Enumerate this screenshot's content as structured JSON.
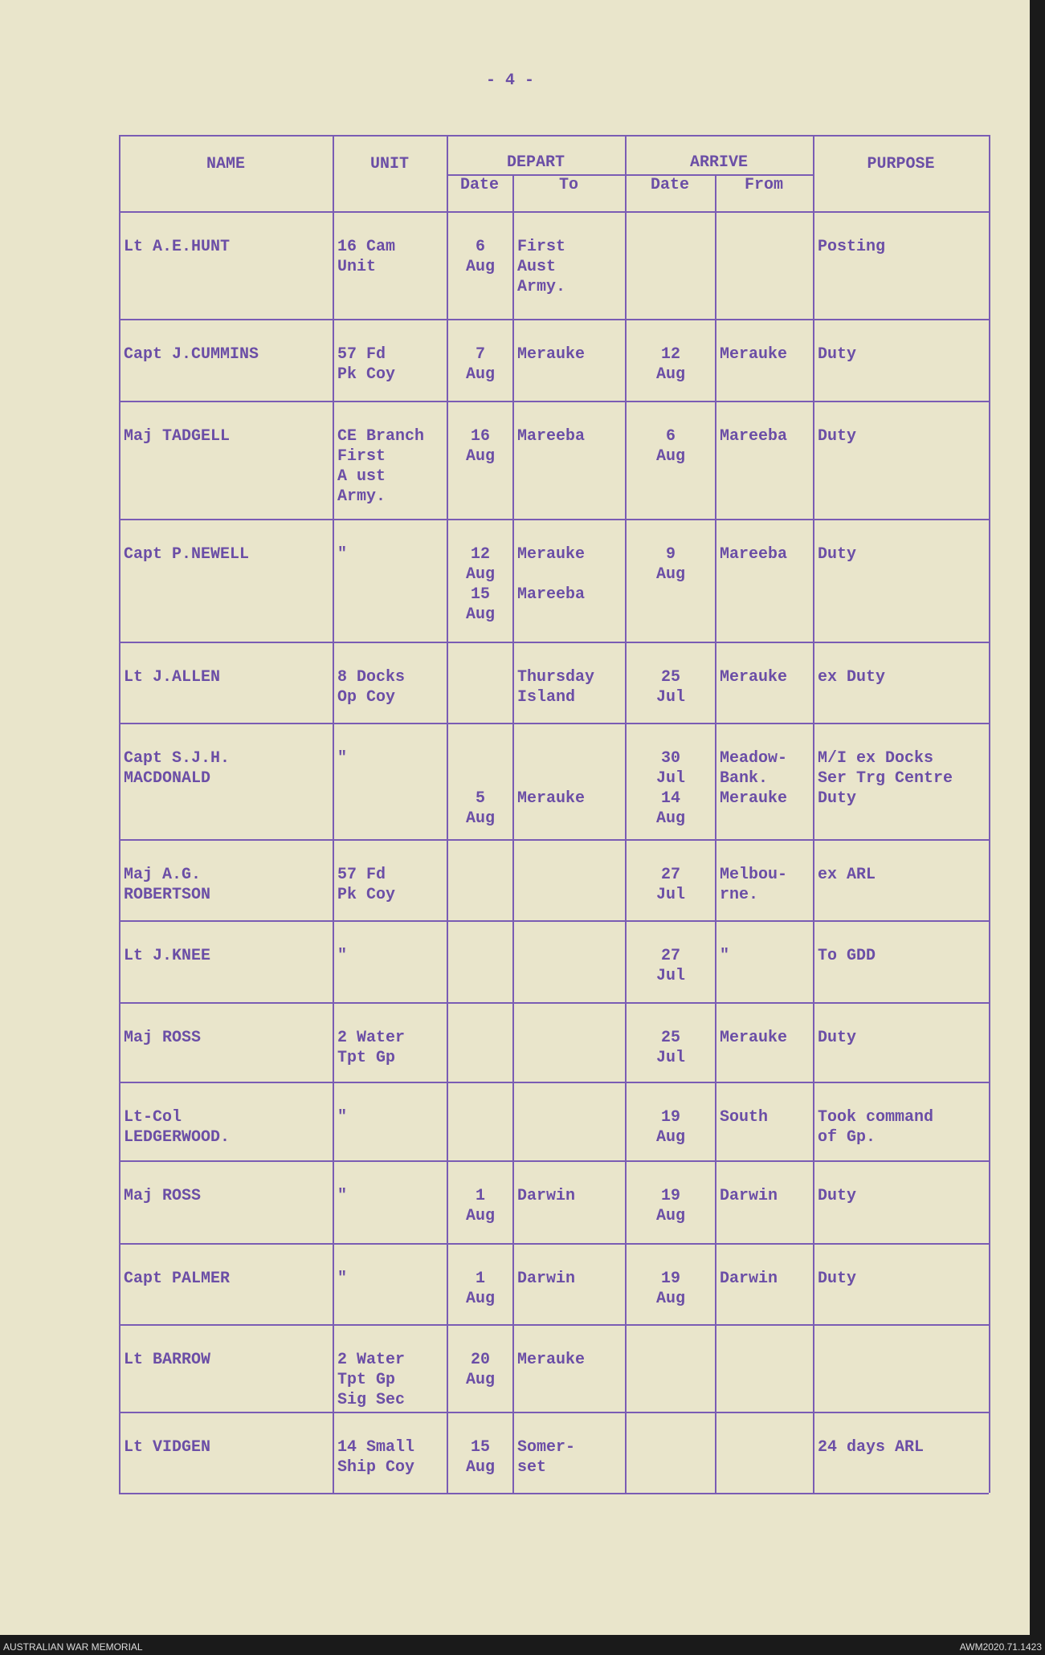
{
  "page_number": "- 4 -",
  "table": {
    "header": {
      "name": "NAME",
      "unit": "UNIT",
      "depart": "DEPART",
      "depart_date": "Date",
      "depart_to": "To",
      "arrive": "ARRIVE",
      "arrive_date": "Date",
      "arrive_from": "From",
      "purpose": "PURPOSE"
    },
    "rows": [
      [
        "Lt A.E.HUNT",
        "16 Cam\nUnit",
        "6\nAug",
        "First\nAust\nArmy.",
        null,
        null,
        "Posting"
      ],
      [
        "Capt J.CUMMINS",
        "57 Fd\nPk Coy",
        "7\nAug",
        "Merauke",
        "12\nAug",
        "Merauke",
        "Duty"
      ],
      [
        "Maj TADGELL",
        "CE Branch\nFirst\nA ust\nArmy.",
        "16\nAug",
        "Mareeba",
        "6\nAug",
        "Mareeba",
        "Duty"
      ],
      [
        "Capt P.NEWELL",
        "\"",
        "12\nAug\n15\nAug",
        "Merauke\n\nMareeba",
        "9\nAug",
        "Mareeba",
        "Duty"
      ],
      [
        "Lt J.ALLEN",
        "8 Docks\nOp Coy",
        null,
        "Thursday\nIsland",
        "25\nJul",
        "Merauke",
        "ex Duty"
      ],
      [
        "Capt S.J.H.\nMACDONALD",
        "\"",
        "\n\n5\nAug",
        "\n\nMerauke",
        "30\nJul\n14\nAug",
        "Meadow-\nBank.\nMerauke",
        "M/I ex Docks\nSer Trg Centre\nDuty"
      ],
      [
        "Maj A.G.\nROBERTSON",
        "57 Fd\nPk Coy",
        null,
        null,
        "27\nJul",
        "Melbou-\nrne.",
        "ex ARL"
      ],
      [
        "Lt J.KNEE",
        "\"",
        null,
        null,
        "27\nJul",
        "\"",
        "To GDD"
      ],
      [
        "Maj ROSS",
        "2 Water\nTpt Gp",
        null,
        null,
        "25\nJul",
        "Merauke",
        "Duty"
      ],
      [
        "Lt-Col\nLEDGERWOOD.",
        "\"",
        null,
        null,
        "19\nAug",
        "South",
        "Took command\nof Gp."
      ],
      [
        "Maj ROSS",
        "\"",
        "1\nAug",
        "Darwin",
        "19\nAug",
        "Darwin",
        "Duty"
      ],
      [
        "Capt PALMER",
        "\"",
        "1\nAug",
        "Darwin",
        "19\nAug",
        "Darwin",
        "Duty"
      ],
      [
        "Lt BARROW",
        "2 Water\nTpt Gp\nSig Sec",
        "20\nAug",
        "Merauke",
        null,
        null,
        null
      ],
      [
        "Lt VIDGEN",
        "14 Small\nShip Coy",
        "15\nAug",
        "Somer-\nset",
        null,
        null,
        "24 days ARL"
      ]
    ]
  },
  "footer": {
    "left": "AUSTRALIAN WAR MEMORIAL",
    "right": "AWM2020.71.1423"
  }
}
